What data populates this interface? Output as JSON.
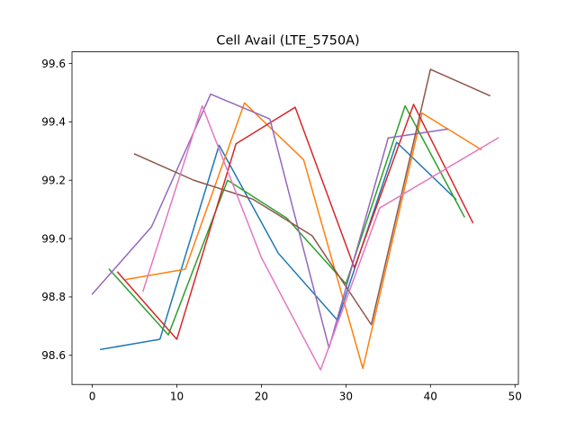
{
  "chart_data": {
    "type": "line",
    "title": "Cell Avail (LTE_5750A)",
    "xlabel": "",
    "ylabel": "",
    "xlim": [
      -2.4,
      50.4
    ],
    "ylim": [
      98.5,
      99.64
    ],
    "xticks": [
      0,
      10,
      20,
      30,
      40,
      50
    ],
    "yticks": [
      98.6,
      98.8,
      99.0,
      99.2,
      99.4,
      99.6
    ],
    "ytick_labels": [
      "98.6",
      "98.8",
      "99.0",
      "99.2",
      "99.4",
      "99.6"
    ],
    "grid": false,
    "legend": "none",
    "series": [
      {
        "color": "#1f77b4",
        "points": [
          [
            1,
            98.62
          ],
          [
            8,
            98.655
          ],
          [
            15,
            99.32
          ],
          [
            22,
            98.95
          ],
          [
            29,
            98.72
          ],
          [
            36,
            99.33
          ],
          [
            43,
            99.135
          ]
        ]
      },
      {
        "color": "#ff7f0e",
        "points": [
          [
            4,
            98.86
          ],
          [
            11,
            98.895
          ],
          [
            18,
            99.465
          ],
          [
            25,
            99.27
          ],
          [
            32,
            98.555
          ],
          [
            39,
            99.43
          ],
          [
            46,
            99.305
          ]
        ]
      },
      {
        "color": "#2ca02c",
        "points": [
          [
            2,
            98.895
          ],
          [
            9,
            98.67
          ],
          [
            16,
            99.2
          ],
          [
            23,
            99.07
          ],
          [
            30,
            98.845
          ],
          [
            37,
            99.455
          ],
          [
            44,
            99.075
          ]
        ]
      },
      {
        "color": "#d62728",
        "points": [
          [
            3,
            98.885
          ],
          [
            10,
            98.655
          ],
          [
            17,
            99.325
          ],
          [
            24,
            99.45
          ],
          [
            31,
            98.9
          ],
          [
            38,
            99.46
          ],
          [
            45,
            99.055
          ]
        ]
      },
      {
        "color": "#9467bd",
        "points": [
          [
            0,
            98.81
          ],
          [
            7,
            99.04
          ],
          [
            14,
            99.495
          ],
          [
            21,
            99.41
          ],
          [
            28,
            98.625
          ],
          [
            35,
            99.345
          ],
          [
            42,
            99.375
          ]
        ]
      },
      {
        "color": "#8c564b",
        "points": [
          [
            5,
            99.29
          ],
          [
            12,
            99.2
          ],
          [
            19,
            99.135
          ],
          [
            26,
            99.01
          ],
          [
            33,
            98.705
          ],
          [
            40,
            99.58
          ],
          [
            47,
            99.49
          ]
        ]
      },
      {
        "color": "#e377c2",
        "points": [
          [
            6,
            98.82
          ],
          [
            13,
            99.455
          ],
          [
            20,
            98.935
          ],
          [
            27,
            98.55
          ],
          [
            34,
            99.105
          ],
          [
            41,
            99.225
          ],
          [
            48,
            99.345
          ]
        ]
      }
    ]
  }
}
